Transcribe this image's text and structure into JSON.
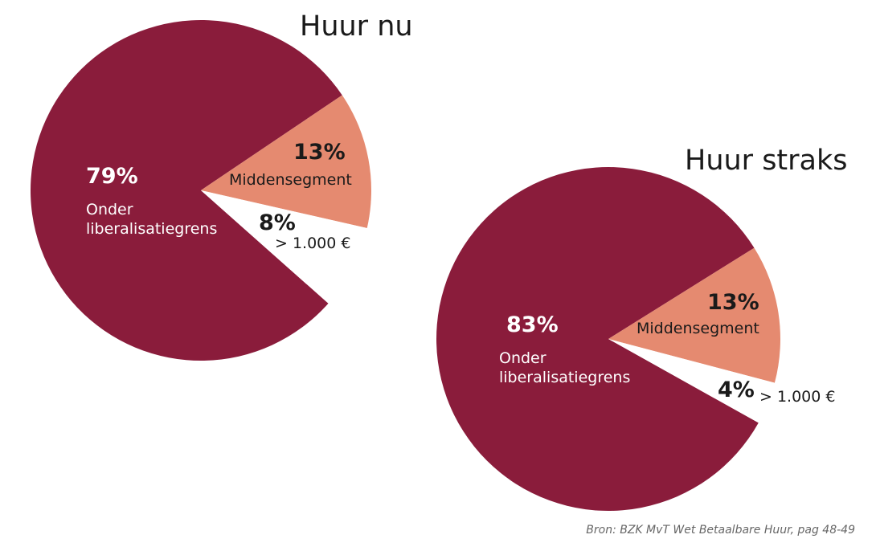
{
  "chart_data": [
    {
      "type": "pie",
      "title": "Huur nu",
      "categories": [
        "Onder liberalisatiegrens",
        "Middensegment",
        "> 1.000 €"
      ],
      "values": [
        79,
        13,
        8
      ],
      "value_labels": [
        "79%",
        "13%",
        "8%"
      ],
      "colors": [
        "#8a1c3b",
        "#e58a70",
        "#ffffff"
      ]
    },
    {
      "type": "pie",
      "title": "Huur straks",
      "categories": [
        "Onder liberalisatiegrens",
        "Middensegment",
        "> 1.000 €"
      ],
      "values": [
        83,
        13,
        4
      ],
      "value_labels": [
        "83%",
        "13%",
        "4%"
      ],
      "colors": [
        "#8a1c3b",
        "#e58a70",
        "#ffffff"
      ]
    }
  ],
  "source": "Bron: BZK MvT Wet Betaalbare Huur, pag 48-49"
}
